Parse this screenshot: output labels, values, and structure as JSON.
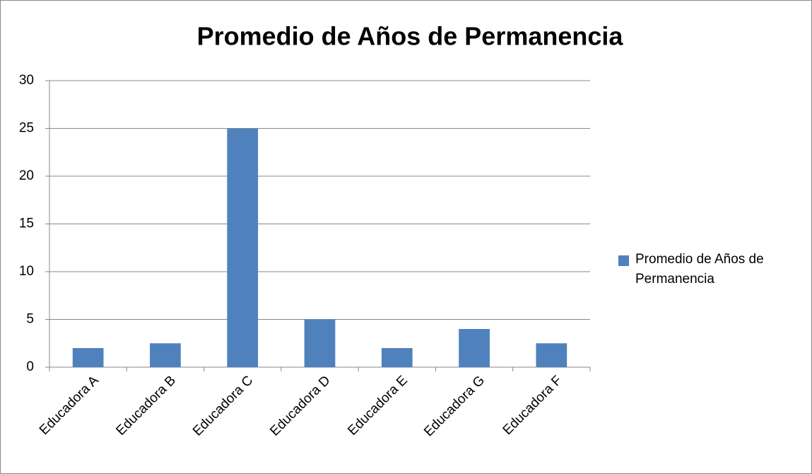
{
  "chart_data": {
    "type": "bar",
    "title": "Promedio de Años de Permanencia",
    "categories": [
      "Educadora A",
      "Educadora B",
      "Educadora C",
      "Educadora D",
      "Educadora E",
      "Educadora G",
      "Educadora F"
    ],
    "series": [
      {
        "name": "Promedio de Años de Permanencia",
        "color": "#4f81bd",
        "values": [
          2,
          2.5,
          25,
          5,
          2,
          4,
          2.5
        ]
      }
    ],
    "ylim": [
      0,
      30
    ],
    "yticks": [
      0,
      5,
      10,
      15,
      20,
      25,
      30
    ],
    "grid": true,
    "legend": "right"
  }
}
